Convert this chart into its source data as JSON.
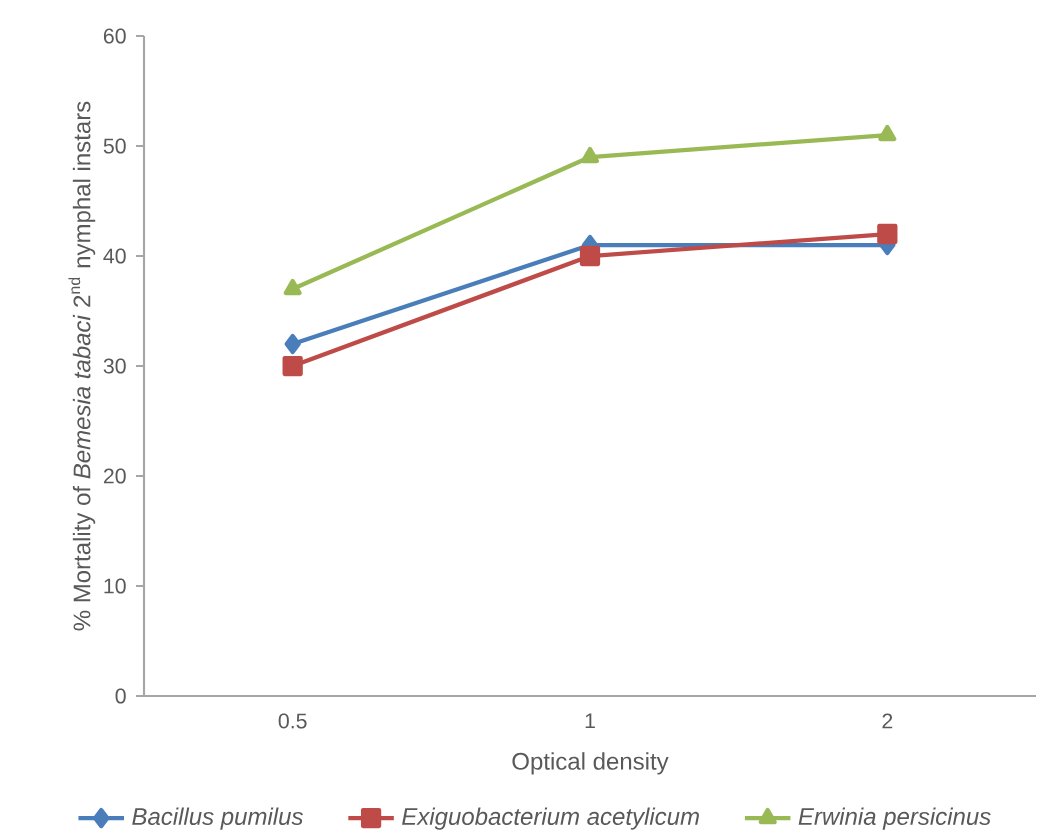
{
  "chart_data": {
    "type": "line",
    "xlabel": "Optical density",
    "ylabel": "% Mortality of *Bemesia tabaci* 2$^{nd}$ nymphal instars",
    "categories": [
      "0.5",
      "1",
      "2"
    ],
    "ylim": [
      0,
      60
    ],
    "yticks": [
      0,
      10,
      20,
      30,
      40,
      50,
      60
    ],
    "grid": false,
    "legend": "bottom",
    "line_style": "solid",
    "series": [
      {
        "name": "Bacillus pumilus",
        "color": "#4a7ebb",
        "marker": "diamond",
        "values": [
          32,
          41,
          41
        ]
      },
      {
        "name": "Exiguobacterium acetylicum",
        "color": "#be4b48",
        "marker": "square",
        "values": [
          30,
          40,
          42
        ]
      },
      {
        "name": "Erwinia persicinus",
        "color": "#98b954",
        "marker": "triangle",
        "values": [
          37,
          49,
          51
        ]
      }
    ]
  }
}
